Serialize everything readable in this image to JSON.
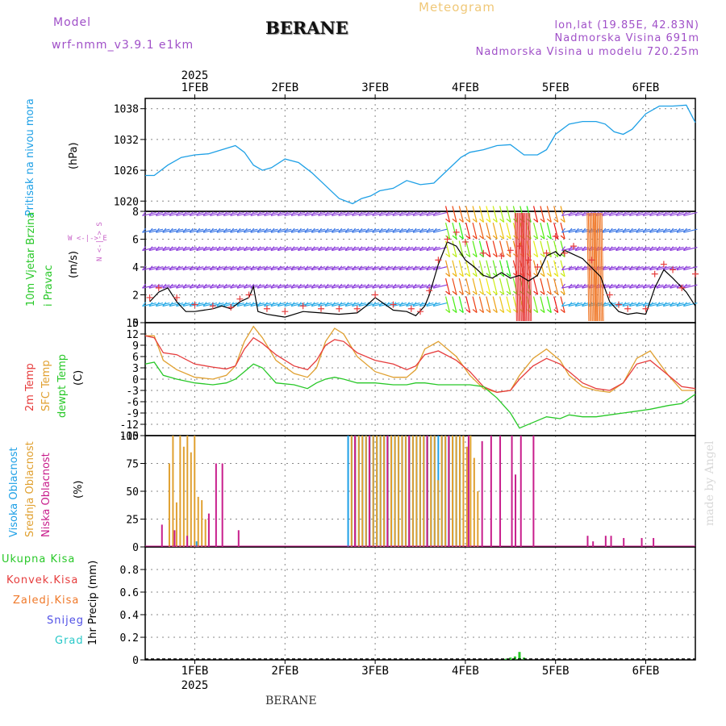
{
  "header": {
    "model_label": "Model",
    "model_name": "wrf-nmm_v3.9.1 e1km",
    "station": "BERANE",
    "meteogram": "Meteogram",
    "lonlat": "lon,lat (19.85E, 42.83N)",
    "elevation": "Nadmorska Visina 691m",
    "model_elevation": "Nadmorska Visina u modelu 720.25m",
    "footer_station": "BERANE",
    "credit": "made by Angel"
  },
  "colors": {
    "pressure": "#1ea0e6",
    "t2m": "#e63c3c",
    "sfc": "#e0a030",
    "dew": "#28c828",
    "high_cloud": "#1ea0e6",
    "mid_cloud": "#e0a030",
    "low_cloud": "#c81e8c",
    "total_precip": "#28c828",
    "conv_precip": "#e63c3c",
    "frz_precip": "#f07828",
    "snow": "#5050e6",
    "hail": "#28c8c8",
    "model_text": "#a050c8"
  },
  "chart_data": [
    {
      "type": "line",
      "panel": "pressure",
      "ylabel": "Pritisak na nivou mora",
      "unit": "(hPa)",
      "x_ticks": [
        "1FEB",
        "2FEB",
        "3FEB",
        "4FEB",
        "5FEB",
        "6FEB"
      ],
      "year": "2025",
      "xlim": [
        -0.55,
        5.55
      ],
      "ylim": [
        1018,
        1040
      ],
      "yticks": [
        1020,
        1026,
        1032,
        1038
      ],
      "series": [
        {
          "x": [
            -0.55,
            -0.45,
            -0.3,
            -0.15,
            0,
            0.15,
            0.3,
            0.45,
            0.55,
            0.65,
            0.75,
            0.85,
            1.0,
            1.15,
            1.3,
            1.45,
            1.6,
            1.75,
            1.85,
            1.95,
            2.05,
            2.2,
            2.35,
            2.5,
            2.65,
            2.8,
            2.95,
            3.05,
            3.2,
            3.35,
            3.5,
            3.65,
            3.8,
            3.9,
            4.0,
            4.15,
            4.3,
            4.45,
            4.55,
            4.65,
            4.75,
            4.85,
            5.0,
            5.15,
            5.3,
            5.45,
            5.55
          ],
          "y": [
            1025,
            1025,
            1027,
            1028.5,
            1029,
            1029.2,
            1030,
            1030.8,
            1029.5,
            1027,
            1026,
            1026.5,
            1028.2,
            1027.5,
            1025.5,
            1023,
            1020.5,
            1019.5,
            1020.5,
            1021,
            1022,
            1022.5,
            1024,
            1023.2,
            1023.5,
            1026,
            1028.5,
            1029.5,
            1030,
            1030.8,
            1031,
            1029,
            1029,
            1030,
            1033,
            1035,
            1035.5,
            1035.5,
            1035,
            1033.5,
            1033,
            1034,
            1037,
            1038.5,
            1038.5,
            1038.7,
            1035.3
          ]
        }
      ]
    },
    {
      "type": "line",
      "panel": "wind",
      "ylabel": "10m Vjetar Brzina i Pravac",
      "unit": "(m/s)",
      "compass": [
        "N",
        "S",
        "W",
        "E"
      ],
      "ylim": [
        0,
        8
      ],
      "yticks": [
        0,
        2,
        4,
        6,
        8
      ],
      "series": [
        {
          "name": "speed",
          "x": [
            -0.5,
            -0.4,
            -0.3,
            -0.2,
            -0.1,
            0,
            0.1,
            0.2,
            0.3,
            0.4,
            0.5,
            0.6,
            0.65,
            0.7,
            0.8,
            0.9,
            1.0,
            1.2,
            1.4,
            1.6,
            1.8,
            1.9,
            2.0,
            2.2,
            2.35,
            2.45,
            2.55,
            2.6,
            2.7,
            2.8,
            2.9,
            3.0,
            3.1,
            3.2,
            3.3,
            3.4,
            3.5,
            3.6,
            3.7,
            3.8,
            3.9,
            4.0,
            4.05,
            4.1,
            4.3,
            4.5,
            4.6,
            4.7,
            4.8,
            4.9,
            5.0,
            5.1,
            5.2,
            5.3,
            5.45,
            5.55
          ],
          "y": [
            1.5,
            2.2,
            2.5,
            1.5,
            0.8,
            0.8,
            0.9,
            1.0,
            1.2,
            1.0,
            1.5,
            1.8,
            2.6,
            0.8,
            0.6,
            0.5,
            0.4,
            0.8,
            0.7,
            0.6,
            0.7,
            1.2,
            1.8,
            0.9,
            0.8,
            0.5,
            1.2,
            2.0,
            4.2,
            5.8,
            5.5,
            4.5,
            4.0,
            3.4,
            3.2,
            3.6,
            3.2,
            3.4,
            3.0,
            3.4,
            4.8,
            5.1,
            4.8,
            5.2,
            4.6,
            3.3,
            1.5,
            0.8,
            0.6,
            0.7,
            0.6,
            2.5,
            3.8,
            3.2,
            2.2,
            1.2
          ]
        },
        {
          "name": "gust_cross",
          "x": [
            -0.5,
            -0.4,
            -0.2,
            0,
            0.2,
            0.4,
            0.5,
            0.6,
            0.8,
            1.0,
            1.2,
            1.4,
            1.6,
            1.8,
            2.0,
            2.2,
            2.4,
            2.5,
            2.6,
            2.7,
            2.8,
            2.9,
            3.0,
            3.2,
            3.4,
            3.5,
            3.6,
            3.7,
            3.8,
            3.9,
            4.0,
            4.1,
            4.2,
            4.4,
            4.6,
            4.7,
            4.8,
            5.0,
            5.1,
            5.2,
            5.3,
            5.4,
            5.55
          ],
          "y": [
            1.8,
            2.5,
            1.8,
            1.3,
            1.2,
            1.1,
            1.7,
            2.0,
            1.0,
            0.8,
            1.2,
            1.0,
            1.0,
            1.0,
            2.0,
            1.3,
            1.0,
            0.8,
            2.3,
            4.5,
            6.0,
            6.5,
            5.8,
            5.0,
            4.8,
            5.2,
            5.5,
            4.5,
            4.0,
            5.0,
            6.2,
            5.0,
            5.5,
            4.5,
            2.0,
            1.3,
            1.0,
            1.0,
            3.5,
            4.2,
            3.8,
            2.5,
            3.5
          ]
        }
      ]
    },
    {
      "type": "line",
      "panel": "temperature",
      "unit": "(C)",
      "ylim": [
        -15,
        15
      ],
      "yticks": [
        -15,
        -12,
        -9,
        -6,
        -3,
        0,
        3,
        6,
        9,
        12,
        15
      ],
      "series": [
        {
          "name": "2m Temp",
          "x": [
            -0.55,
            -0.45,
            -0.35,
            -0.2,
            0,
            0.2,
            0.35,
            0.45,
            0.55,
            0.65,
            0.75,
            0.9,
            1.1,
            1.25,
            1.35,
            1.45,
            1.55,
            1.65,
            1.8,
            2.0,
            2.2,
            2.35,
            2.45,
            2.55,
            2.7,
            2.9,
            3.05,
            3.2,
            3.35,
            3.5,
            3.6,
            3.75,
            3.9,
            4.05,
            4.15,
            4.3,
            4.45,
            4.6,
            4.75,
            4.9,
            5.05,
            5.25,
            5.4,
            5.55
          ],
          "y": [
            11.5,
            11,
            7,
            6.5,
            4,
            3.2,
            2.7,
            3.5,
            8,
            11,
            9.5,
            6.5,
            3.5,
            2.5,
            5,
            9,
            10.5,
            10,
            7,
            5,
            4,
            2.5,
            3.5,
            6.5,
            7.5,
            5,
            2,
            -2,
            -3.5,
            -3,
            0,
            3.5,
            5.5,
            4,
            2,
            -1,
            -2.5,
            -3,
            -1,
            4,
            5,
            1,
            -2,
            -2.5
          ]
        },
        {
          "name": "SFC Temp",
          "x": [
            -0.55,
            -0.45,
            -0.35,
            -0.2,
            0,
            0.2,
            0.35,
            0.45,
            0.55,
            0.65,
            0.75,
            0.9,
            1.1,
            1.25,
            1.35,
            1.45,
            1.55,
            1.65,
            1.8,
            2.0,
            2.2,
            2.35,
            2.45,
            2.55,
            2.7,
            2.9,
            3.05,
            3.2,
            3.35,
            3.5,
            3.6,
            3.75,
            3.9,
            4.05,
            4.15,
            4.3,
            4.45,
            4.6,
            4.75,
            4.9,
            5.05,
            5.25,
            5.4,
            5.55
          ],
          "y": [
            11.5,
            11.5,
            5,
            2.5,
            0.5,
            0,
            1,
            3.5,
            10,
            14,
            11,
            5,
            1.5,
            0.5,
            3,
            10,
            13.5,
            12,
            6,
            2,
            0.5,
            0.5,
            2.5,
            8,
            10,
            6,
            1,
            -2.5,
            -3.5,
            -3,
            1,
            5.5,
            8,
            5,
            1,
            -2,
            -3,
            -3.5,
            -1,
            5.5,
            7.5,
            1,
            -3,
            -3
          ]
        },
        {
          "name": "dewpt Temp",
          "x": [
            -0.55,
            -0.45,
            -0.35,
            -0.2,
            0,
            0.2,
            0.35,
            0.45,
            0.55,
            0.65,
            0.75,
            0.9,
            1.1,
            1.25,
            1.35,
            1.45,
            1.55,
            1.65,
            1.8,
            2.0,
            2.2,
            2.35,
            2.45,
            2.55,
            2.7,
            2.9,
            3.05,
            3.2,
            3.35,
            3.5,
            3.6,
            3.75,
            3.9,
            4.05,
            4.15,
            4.3,
            4.45,
            4.6,
            4.75,
            4.9,
            5.05,
            5.25,
            5.4,
            5.55
          ],
          "y": [
            4,
            4.5,
            1,
            0,
            -1,
            -1.5,
            -1,
            0,
            2,
            4,
            3,
            -1,
            -1.5,
            -2.5,
            -1,
            0,
            0.5,
            0,
            -1,
            -1,
            -1.5,
            -1.5,
            -1,
            -1,
            -1.5,
            -1.5,
            -1.5,
            -2,
            -5,
            -9,
            -13,
            -11.5,
            -10,
            -10.5,
            -9.5,
            -10,
            -10,
            -9.5,
            -9,
            -8.5,
            -8,
            -7,
            -6.5,
            -4
          ]
        }
      ]
    },
    {
      "type": "bar",
      "panel": "cloud",
      "unit": "(%)",
      "ylim": [
        0,
        100
      ],
      "yticks": [
        0,
        25,
        50,
        75,
        100
      ],
      "series": [
        {
          "name": "Visoka Oblacnost",
          "x": [
            0.02,
            1.7,
            1.74,
            1.78,
            1.82,
            1.86,
            1.9,
            1.94,
            1.98,
            2.02,
            2.06,
            2.1,
            2.14,
            2.18,
            2.22,
            2.26,
            2.3,
            2.34,
            2.38,
            2.42,
            2.46,
            2.5,
            2.54,
            2.58,
            2.62,
            2.66,
            2.7,
            2.74,
            2.78,
            2.82,
            2.86,
            2.9,
            2.94
          ],
          "y": [
            5,
            100,
            100,
            100,
            100,
            100,
            100,
            100,
            100,
            100,
            100,
            100,
            100,
            100,
            100,
            100,
            100,
            100,
            100,
            100,
            100,
            100,
            100,
            100,
            100,
            100,
            100,
            100,
            100,
            100,
            100,
            100,
            100
          ]
        },
        {
          "name": "Srednja Oblacnost",
          "x": [
            -0.3,
            -0.26,
            -0.22,
            -0.18,
            -0.14,
            -0.1,
            -0.06,
            -0.02,
            0.02,
            0.06,
            0.1,
            1.72,
            1.76,
            1.8,
            1.84,
            1.88,
            1.92,
            1.96,
            2.0,
            2.04,
            2.08,
            2.12,
            2.16,
            2.2,
            2.24,
            2.28,
            2.32,
            2.36,
            2.4,
            2.44,
            2.48,
            2.52,
            2.56,
            2.6,
            2.64,
            2.68,
            2.72,
            2.76,
            2.8,
            2.84,
            2.88,
            2.92,
            2.96,
            3.0,
            3.04,
            3.08,
            3.12
          ],
          "y": [
            75,
            100,
            40,
            100,
            90,
            100,
            85,
            100,
            45,
            42,
            25,
            100,
            100,
            100,
            100,
            100,
            100,
            100,
            100,
            100,
            100,
            100,
            100,
            100,
            100,
            100,
            100,
            100,
            100,
            100,
            100,
            100,
            100,
            100,
            100,
            60,
            100,
            100,
            100,
            100,
            100,
            100,
            100,
            90,
            100,
            80,
            50
          ]
        },
        {
          "name": "Niska Oblacnost",
          "x": [
            -0.4,
            -0.26,
            -0.12,
            0.12,
            0.2,
            0.27,
            0.45,
            1.74,
            1.9,
            2.1,
            2.34,
            2.54,
            2.78,
            3.0,
            3.15,
            3.25,
            3.35,
            3.48,
            3.52,
            3.58,
            3.72,
            4.32,
            4.38,
            4.52,
            4.58,
            4.72,
            4.92,
            5.05
          ],
          "y": [
            20,
            15,
            10,
            30,
            75,
            75,
            15,
            100,
            100,
            100,
            100,
            100,
            100,
            100,
            95,
            100,
            100,
            100,
            65,
            100,
            100,
            10,
            5,
            10,
            10,
            8,
            8,
            8
          ]
        }
      ]
    },
    {
      "type": "bar",
      "panel": "precip",
      "ylabel": "1hr Precip",
      "unit": "(mm)",
      "ylim": [
        0,
        1
      ],
      "yticks": [
        0,
        0.2,
        0.4,
        0.6,
        0.8
      ],
      "series": [
        {
          "name": "Ukupna Kisa",
          "x": [
            3.45,
            3.5,
            3.55,
            3.6,
            3.65
          ],
          "y": [
            0.01,
            0.02,
            0.03,
            0.07,
            0.02
          ]
        },
        {
          "name": "Konvek.Kisa",
          "x": [],
          "y": []
        },
        {
          "name": "Zaledj.Kisa",
          "x": [],
          "y": []
        },
        {
          "name": "Snijeg",
          "x": [],
          "y": []
        },
        {
          "name": "Grad",
          "x": [],
          "y": []
        }
      ]
    }
  ]
}
